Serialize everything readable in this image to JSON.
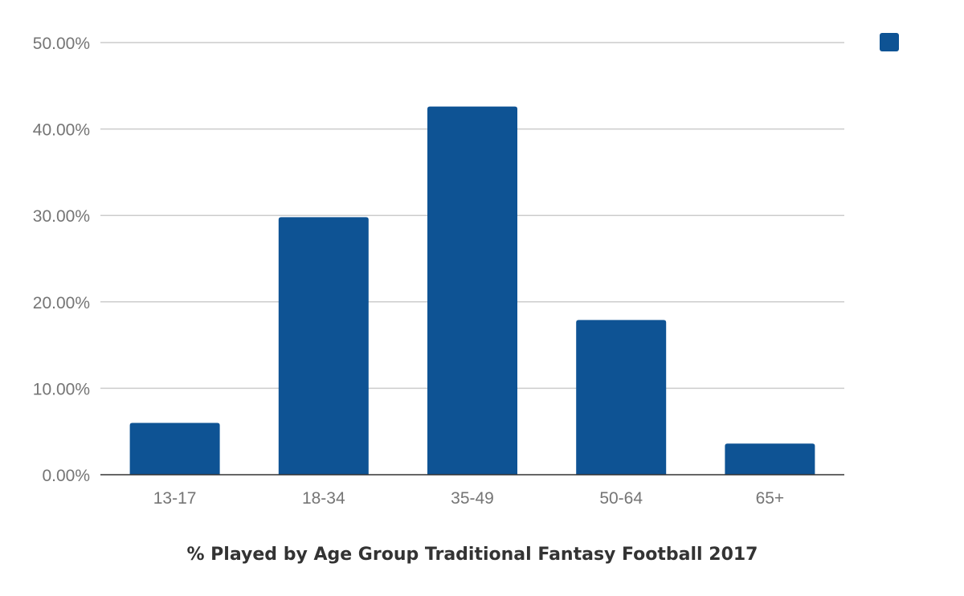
{
  "chart_data": {
    "type": "bar",
    "title": "% Played by Age Group Traditional Fantasy Football 2017",
    "xlabel": "",
    "ylabel": "",
    "categories": [
      "13-17",
      "18-34",
      "35-49",
      "50-64",
      "65+"
    ],
    "series": [
      {
        "values": [
          6.0,
          29.8,
          42.6,
          17.9,
          3.6
        ],
        "color": "#0e5394"
      }
    ],
    "ylim": [
      0,
      50
    ],
    "yticks": [
      0,
      10,
      20,
      30,
      40,
      50
    ],
    "ytick_labels": [
      "0.00%",
      "10.00%",
      "20.00%",
      "30.00%",
      "40.00%",
      "50.00%"
    ],
    "grid": true,
    "legend": "top-right",
    "colors": {
      "bar": "#0e5394",
      "grid": "#cccccc",
      "axis": "#333333",
      "tick_text": "#757575",
      "title_text": "#333333"
    }
  }
}
